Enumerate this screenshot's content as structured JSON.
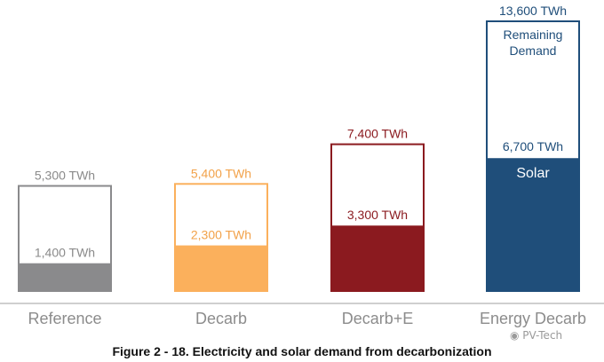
{
  "chart_data": {
    "type": "bar",
    "categories": [
      "Reference",
      "Decarb",
      "Decarb+E",
      "Energy Decarb"
    ],
    "unit": "TWh",
    "series": [
      {
        "name": "Solar",
        "values": [
          1400,
          2300,
          3300,
          6700
        ]
      },
      {
        "name": "Remaining Demand",
        "values": [
          3900,
          3100,
          4100,
          6900
        ]
      }
    ],
    "totals": [
      5300,
      5400,
      7400,
      13600
    ],
    "total_labels": [
      "5,300 TWh",
      "5,400 TWh",
      "7,400 TWh",
      "13,600 TWh"
    ],
    "solar_labels": [
      "1,400 TWh",
      "2,300 TWh",
      "3,300 TWh",
      "6,700 TWh"
    ],
    "in_bar_labels": {
      "remaining": "Remaining Demand",
      "solar": "Solar"
    },
    "colors": [
      "#8a8a8c",
      "#fbb05c",
      "#8b1a1f",
      "#1f4e7a"
    ],
    "label_colors": [
      "#8a8a8a",
      "#f2a24a",
      "#8b1a1f",
      "#1f4e7a"
    ],
    "ylim": [
      0,
      13600
    ],
    "grid": false,
    "legend": "none"
  },
  "caption": "Figure 2 - 18. Electricity and solar demand from decarbonization",
  "watermark": "PV-Tech"
}
